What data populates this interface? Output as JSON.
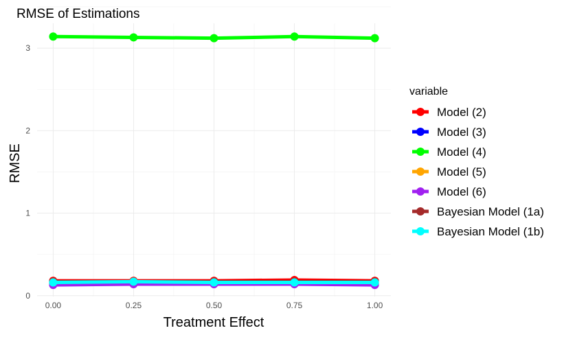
{
  "chart_data": {
    "type": "line",
    "title": "RMSE of Estimations",
    "xlabel": "Treatment Effect",
    "ylabel": "RMSE",
    "x": [
      0.0,
      0.25,
      0.5,
      0.75,
      1.0
    ],
    "x_tick_labels": [
      "0.00",
      "0.25",
      "0.50",
      "0.75",
      "1.00"
    ],
    "y_ticks": [
      0,
      1,
      2,
      3
    ],
    "xlim": [
      -0.05,
      1.05
    ],
    "ylim": [
      -0.01,
      3.3
    ],
    "grid": true,
    "legend": {
      "title": "variable",
      "position": "right"
    },
    "series": [
      {
        "name": "Model (2)",
        "color": "#ff0000",
        "values": [
          0.18,
          0.18,
          0.18,
          0.19,
          0.18
        ]
      },
      {
        "name": "Model (3)",
        "color": "#0000ff",
        "values": [
          0.15,
          0.15,
          0.15,
          0.15,
          0.15
        ]
      },
      {
        "name": "Model (4)",
        "color": "#00ff00",
        "values": [
          3.14,
          3.13,
          3.12,
          3.14,
          3.12
        ]
      },
      {
        "name": "Model (5)",
        "color": "#ffa500",
        "values": [
          0.15,
          0.15,
          0.15,
          0.15,
          0.15
        ]
      },
      {
        "name": "Model (6)",
        "color": "#a020f0",
        "values": [
          0.13,
          0.14,
          0.14,
          0.14,
          0.13
        ]
      },
      {
        "name": "Bayesian Model (1a)",
        "color": "#a52a2a",
        "values": [
          0.17,
          0.17,
          0.17,
          0.17,
          0.17
        ]
      },
      {
        "name": "Bayesian Model (1b)",
        "color": "#00ffff",
        "values": [
          0.16,
          0.17,
          0.16,
          0.16,
          0.16
        ]
      }
    ]
  }
}
